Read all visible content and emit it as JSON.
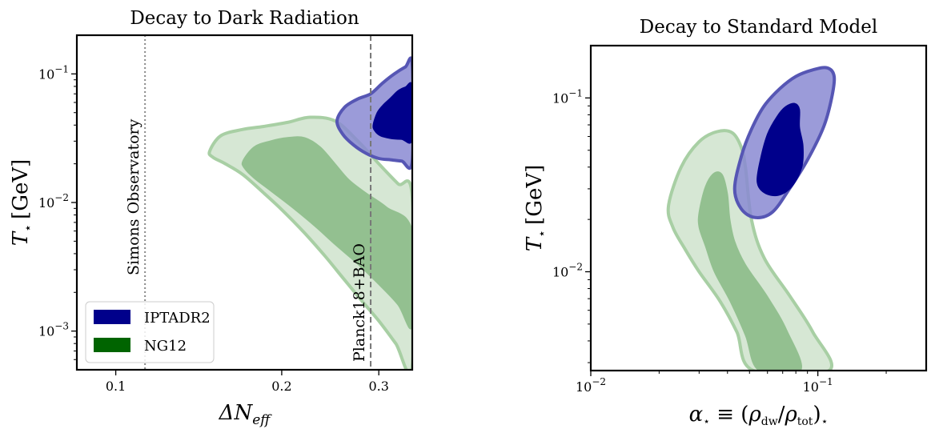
{
  "chart_data": [
    {
      "type": "contour",
      "title": "Decay to Dark Radiation",
      "xlabel": "ΔN",
      "xlabel_sub": "eff",
      "ylabel": "T",
      "ylabel_sub": "⋆",
      "ylabel_unit": "[GeV]",
      "xscale": "log",
      "yscale": "log",
      "xlim": [
        0.085,
        0.345
      ],
      "ylim": [
        0.0005,
        0.2
      ],
      "xticks": [
        {
          "value": 0.1,
          "label": "0.1"
        },
        {
          "value": 0.2,
          "label": "0.2"
        },
        {
          "value": 0.3,
          "label": "0.3"
        }
      ],
      "yticks": [
        {
          "value": 0.001,
          "base": "10",
          "exp": "−3"
        },
        {
          "value": 0.01,
          "base": "10",
          "exp": "−2"
        },
        {
          "value": 0.1,
          "base": "10",
          "exp": "−1"
        }
      ],
      "legend": {
        "position": "lower-left",
        "entries": [
          {
            "label": "IPTADR2",
            "color": "#00008b"
          },
          {
            "label": "NG12",
            "color": "#006400"
          }
        ]
      },
      "vlines": [
        {
          "x": 0.113,
          "label": "Simons Observatory",
          "style": "dotted",
          "color": "#888888"
        },
        {
          "x": 0.29,
          "label": "Planck18+BAO",
          "style": "dashed",
          "color": "#777777"
        }
      ],
      "regions": [
        {
          "series": "NG12",
          "level": "95%",
          "fill": "#d6e7d4",
          "stroke": "#a8cfa4",
          "points": [
            [
              0.148,
              0.025
            ],
            [
              0.155,
              0.033
            ],
            [
              0.17,
              0.037
            ],
            [
              0.185,
              0.039
            ],
            [
              0.205,
              0.042
            ],
            [
              0.225,
              0.046
            ],
            [
              0.25,
              0.043
            ],
            [
              0.275,
              0.03
            ],
            [
              0.3,
              0.02
            ],
            [
              0.325,
              0.014
            ],
            [
              0.345,
              0.011
            ],
            [
              0.345,
              0.00053
            ],
            [
              0.322,
              0.0008
            ],
            [
              0.3,
              0.0012
            ],
            [
              0.28,
              0.0017
            ],
            [
              0.26,
              0.0025
            ],
            [
              0.24,
              0.0038
            ],
            [
              0.22,
              0.0058
            ],
            [
              0.2,
              0.0088
            ],
            [
              0.185,
              0.012
            ],
            [
              0.17,
              0.0165
            ],
            [
              0.158,
              0.02
            ],
            [
              0.15,
              0.0225
            ]
          ]
        },
        {
          "series": "NG12",
          "level": "68%",
          "fill": "#93c090",
          "stroke": "#93c090",
          "points": [
            [
              0.17,
              0.021
            ],
            [
              0.178,
              0.027
            ],
            [
              0.19,
              0.03
            ],
            [
              0.205,
              0.032
            ],
            [
              0.22,
              0.032
            ],
            [
              0.235,
              0.027
            ],
            [
              0.25,
              0.02
            ],
            [
              0.265,
              0.015
            ],
            [
              0.285,
              0.0118
            ],
            [
              0.31,
              0.0092
            ],
            [
              0.345,
              0.006
            ],
            [
              0.345,
              0.0011
            ],
            [
              0.325,
              0.0016
            ],
            [
              0.3,
              0.0023
            ],
            [
              0.275,
              0.0033
            ],
            [
              0.25,
              0.0047
            ],
            [
              0.23,
              0.0065
            ],
            [
              0.21,
              0.009
            ],
            [
              0.19,
              0.0125
            ],
            [
              0.178,
              0.0155
            ],
            [
              0.171,
              0.0185
            ]
          ]
        },
        {
          "series": "IPTADR2",
          "level": "95%",
          "fill": "#8a8ad2",
          "stroke": "#5656b4",
          "alpha": 0.85,
          "points": [
            [
              0.252,
              0.043
            ],
            [
              0.26,
              0.055
            ],
            [
              0.275,
              0.064
            ],
            [
              0.29,
              0.07
            ],
            [
              0.305,
              0.085
            ],
            [
              0.32,
              0.1
            ],
            [
              0.335,
              0.113
            ],
            [
              0.345,
              0.118
            ],
            [
              0.345,
              0.021
            ],
            [
              0.33,
              0.021
            ],
            [
              0.315,
              0.0215
            ],
            [
              0.3,
              0.022
            ],
            [
              0.285,
              0.024
            ],
            [
              0.27,
              0.028
            ],
            [
              0.258,
              0.034
            ]
          ]
        },
        {
          "series": "IPTADR2",
          "level": "68%",
          "fill": "#00008b",
          "stroke": "#00008b",
          "points": [
            [
              0.293,
              0.04
            ],
            [
              0.298,
              0.05
            ],
            [
              0.305,
              0.057
            ],
            [
              0.315,
              0.065
            ],
            [
              0.325,
              0.074
            ],
            [
              0.335,
              0.079
            ],
            [
              0.345,
              0.08
            ],
            [
              0.345,
              0.031
            ],
            [
              0.33,
              0.031
            ],
            [
              0.315,
              0.0315
            ],
            [
              0.302,
              0.033
            ],
            [
              0.295,
              0.036
            ]
          ]
        }
      ]
    },
    {
      "type": "contour",
      "title": "Decay to Standard Model",
      "xlabel": "α⋆ ≡ (ρdw/ρtot)⋆",
      "ylabel": "T",
      "ylabel_sub": "⋆",
      "ylabel_unit": "[GeV]",
      "xscale": "log",
      "yscale": "log",
      "xlim": [
        0.01,
        0.3
      ],
      "ylim": [
        0.0027,
        0.2
      ],
      "xticks": [
        {
          "value": 0.01,
          "base": "10",
          "exp": "−2"
        },
        {
          "value": 0.1,
          "base": "10",
          "exp": "−1"
        }
      ],
      "yticks": [
        {
          "value": 0.01,
          "base": "10",
          "exp": "−2"
        },
        {
          "value": 0.1,
          "base": "10",
          "exp": "−1"
        }
      ],
      "regions": [
        {
          "series": "NG12",
          "level": "95%",
          "fill": "#d6e7d4",
          "stroke": "#a8cfa4",
          "points": [
            [
              0.022,
              0.024
            ],
            [
              0.025,
              0.04
            ],
            [
              0.03,
              0.056
            ],
            [
              0.036,
              0.064
            ],
            [
              0.042,
              0.063
            ],
            [
              0.046,
              0.052
            ],
            [
              0.048,
              0.04
            ],
            [
              0.051,
              0.02
            ],
            [
              0.058,
              0.012
            ],
            [
              0.075,
              0.0073
            ],
            [
              0.095,
              0.0045
            ],
            [
              0.112,
              0.0027
            ],
            [
              0.052,
              0.0027
            ],
            [
              0.044,
              0.0045
            ],
            [
              0.037,
              0.0068
            ],
            [
              0.03,
              0.01
            ],
            [
              0.026,
              0.0135
            ],
            [
              0.023,
              0.018
            ]
          ]
        },
        {
          "series": "NG12",
          "level": "68%",
          "fill": "#93c090",
          "stroke": "#93c090",
          "points": [
            [
              0.03,
              0.022
            ],
            [
              0.032,
              0.031
            ],
            [
              0.035,
              0.037
            ],
            [
              0.038,
              0.036
            ],
            [
              0.04,
              0.028
            ],
            [
              0.041,
              0.02
            ],
            [
              0.043,
              0.015
            ],
            [
              0.048,
              0.011
            ],
            [
              0.06,
              0.0072
            ],
            [
              0.073,
              0.0046
            ],
            [
              0.084,
              0.0027
            ],
            [
              0.055,
              0.0027
            ],
            [
              0.048,
              0.0043
            ],
            [
              0.041,
              0.0068
            ],
            [
              0.035,
              0.01
            ],
            [
              0.032,
              0.014
            ],
            [
              0.03,
              0.018
            ]
          ]
        },
        {
          "series": "IPTADR2",
          "level": "95%",
          "fill": "#8a8ad2",
          "stroke": "#5656b4",
          "alpha": 0.85,
          "points": [
            [
              0.043,
              0.03
            ],
            [
              0.046,
              0.046
            ],
            [
              0.051,
              0.066
            ],
            [
              0.058,
              0.09
            ],
            [
              0.068,
              0.113
            ],
            [
              0.08,
              0.133
            ],
            [
              0.095,
              0.145
            ],
            [
              0.11,
              0.149
            ],
            [
              0.118,
              0.133
            ],
            [
              0.115,
              0.1
            ],
            [
              0.106,
              0.068
            ],
            [
              0.09,
              0.044
            ],
            [
              0.075,
              0.03
            ],
            [
              0.063,
              0.022
            ],
            [
              0.053,
              0.0205
            ],
            [
              0.046,
              0.023
            ]
          ]
        },
        {
          "series": "IPTADR2",
          "level": "68%",
          "fill": "#00008b",
          "stroke": "#00008b",
          "points": [
            [
              0.054,
              0.033
            ],
            [
              0.056,
              0.045
            ],
            [
              0.06,
              0.062
            ],
            [
              0.066,
              0.078
            ],
            [
              0.072,
              0.089
            ],
            [
              0.079,
              0.093
            ],
            [
              0.083,
              0.086
            ],
            [
              0.083,
              0.068
            ],
            [
              0.086,
              0.053
            ],
            [
              0.085,
              0.04
            ],
            [
              0.077,
              0.031
            ],
            [
              0.067,
              0.0275
            ],
            [
              0.058,
              0.0285
            ]
          ]
        }
      ]
    }
  ]
}
